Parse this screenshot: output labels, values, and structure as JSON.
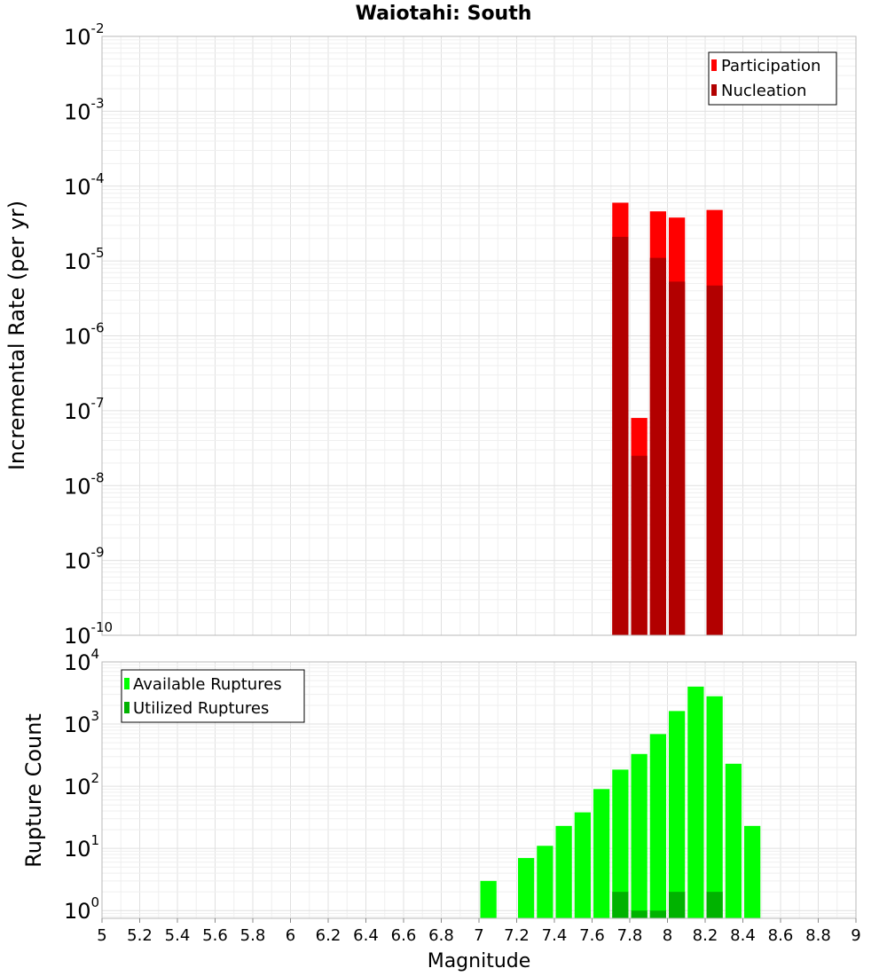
{
  "chart_data": [
    {
      "type": "bar",
      "title": "Waiotahi: South",
      "xlabel": "",
      "ylabel": "Incremental Rate (per yr)",
      "yscale": "log",
      "ylim": [
        1e-10,
        0.01
      ],
      "xlim": [
        5,
        9
      ],
      "bin_width": 0.1,
      "y_tick_exponents": [
        "-10",
        "-9",
        "-8",
        "-7",
        "-6",
        "-5",
        "-4",
        "-3",
        "-2"
      ],
      "legend_position": "top-right",
      "series": [
        {
          "name": "Participation",
          "color": "#ff0000",
          "x": [
            7.75,
            7.85,
            7.95,
            8.05,
            8.25
          ],
          "values": [
            6e-05,
            8e-08,
            4.6e-05,
            3.8e-05,
            4.8e-05
          ]
        },
        {
          "name": "Nucleation",
          "color": "#b20000",
          "x": [
            7.75,
            7.85,
            7.95,
            8.05,
            8.25
          ],
          "values": [
            2.1e-05,
            2.5e-08,
            1.1e-05,
            5.3e-06,
            4.7e-06
          ]
        }
      ]
    },
    {
      "type": "bar",
      "title": "",
      "xlabel": "Magnitude",
      "ylabel": "Rupture Count",
      "yscale": "log",
      "ylim": [
        0.75,
        10000
      ],
      "xlim": [
        5,
        9
      ],
      "bin_width": 0.1,
      "y_tick_exponents": [
        "0",
        "1",
        "2",
        "3",
        "4"
      ],
      "x_tick_labels": [
        "5",
        "5.2",
        "5.4",
        "5.6",
        "5.8",
        "6",
        "6.2",
        "6.4",
        "6.6",
        "6.8",
        "7",
        "7.2",
        "7.4",
        "7.6",
        "7.8",
        "8",
        "8.2",
        "8.4",
        "8.6",
        "8.8",
        "9"
      ],
      "legend_position": "top-left",
      "series": [
        {
          "name": "Available Ruptures",
          "color": "#00ff00",
          "x": [
            7.05,
            7.25,
            7.35,
            7.45,
            7.55,
            7.65,
            7.75,
            7.85,
            7.95,
            8.05,
            8.15,
            8.25,
            8.35,
            8.45
          ],
          "values": [
            3,
            7,
            11,
            23,
            38,
            90,
            185,
            330,
            690,
            1620,
            4000,
            2800,
            230,
            23
          ]
        },
        {
          "name": "Utilized Ruptures",
          "color": "#00b200",
          "x": [
            7.75,
            7.85,
            7.95,
            8.05,
            8.25
          ],
          "values": [
            2,
            1,
            1,
            2,
            2
          ]
        }
      ]
    }
  ]
}
